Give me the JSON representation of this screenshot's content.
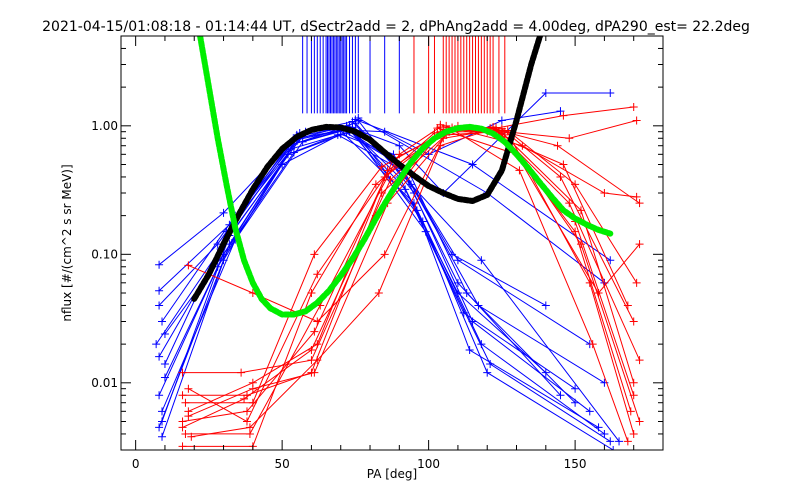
{
  "chart_data": {
    "type": "line",
    "title": "2021-04-15/01:08:18 - 01:14:44 UT, dSectr2add = 2, dPhAng2add = 4.00deg, dPA290_est=  22.2deg",
    "xlabel": "PA [deg]",
    "ylabel": "nflux [#/(cm^2 s sr MeV)]",
    "xlim": [
      -5,
      180
    ],
    "ylim": [
      0.003,
      5
    ],
    "yscale": "log",
    "x_ticks": [
      0,
      50,
      100,
      150
    ],
    "x_tick_labels": [
      "0",
      "50",
      "100",
      "150"
    ],
    "y_ticks": [
      0.01,
      0.1,
      1.0
    ],
    "y_tick_labels": [
      "0.01",
      "0.10",
      "1.00"
    ],
    "colors": {
      "blue": "#0000ff",
      "red": "#ff0000",
      "black": "#000000",
      "green": "#00ee00"
    },
    "series": [
      {
        "color": "blue",
        "style": "line+plus",
        "lines": [
          [
            [
              8,
              0.083
            ],
            [
              30,
              0.21
            ],
            [
              55,
              0.85
            ],
            [
              72,
              1.0
            ],
            [
              90,
              0.4
            ],
            [
              110,
              0.05
            ],
            [
              140,
              0.012
            ]
          ],
          [
            [
              8,
              0.052
            ],
            [
              32,
              0.17
            ],
            [
              55,
              0.78
            ],
            [
              73,
              0.95
            ],
            [
              92,
              0.32
            ],
            [
              112,
              0.035
            ],
            [
              150,
              0.009
            ]
          ],
          [
            [
              8,
              0.04
            ],
            [
              28,
              0.12
            ],
            [
              52,
              0.7
            ],
            [
              70,
              0.92
            ],
            [
              95,
              0.25
            ],
            [
              118,
              0.02
            ],
            [
              160,
              0.004
            ]
          ],
          [
            [
              9,
              0.03
            ],
            [
              34,
              0.2
            ],
            [
              56,
              0.88
            ],
            [
              74,
              0.97
            ],
            [
              98,
              0.18
            ],
            [
              120,
              0.012
            ],
            [
              163,
              0.003
            ]
          ],
          [
            [
              10,
              0.024
            ],
            [
              30,
              0.1
            ],
            [
              54,
              0.62
            ],
            [
              72,
              0.88
            ],
            [
              90,
              0.5
            ],
            [
              108,
              0.1
            ],
            [
              140,
              0.04
            ]
          ],
          [
            [
              8,
              0.016
            ],
            [
              32,
              0.14
            ],
            [
              58,
              0.9
            ],
            [
              76,
              1.1
            ],
            [
              95,
              0.3
            ],
            [
              115,
              0.03
            ],
            [
              155,
              0.006
            ]
          ],
          [
            [
              10,
              0.011
            ],
            [
              28,
              0.08
            ],
            [
              50,
              0.5
            ],
            [
              70,
              0.86
            ],
            [
              88,
              0.6
            ],
            [
              110,
              0.09
            ],
            [
              155,
              0.02
            ]
          ],
          [
            [
              8,
              0.008
            ],
            [
              30,
              0.1
            ],
            [
              53,
              0.66
            ],
            [
              73,
              0.9
            ],
            [
              93,
              0.45
            ],
            [
              113,
              0.05
            ],
            [
              150,
              0.007
            ]
          ],
          [
            [
              9,
              0.006
            ],
            [
              34,
              0.13
            ],
            [
              57,
              0.75
            ],
            [
              74,
              0.96
            ],
            [
              90,
              0.7
            ],
            [
              105,
              0.3
            ],
            [
              140,
              1.8
            ],
            [
              162,
              1.8
            ]
          ],
          [
            [
              8,
              0.0045
            ],
            [
              30,
              0.09
            ],
            [
              55,
              0.8
            ],
            [
              71,
              0.93
            ],
            [
              85,
              0.9
            ],
            [
              100,
              0.6
            ],
            [
              125,
              1.1
            ],
            [
              145,
              1.3
            ]
          ],
          [
            [
              9,
              0.0038
            ],
            [
              32,
              0.12
            ],
            [
              54,
              0.72
            ],
            [
              72,
              0.99
            ],
            [
              96,
              0.22
            ],
            [
              114,
              0.018
            ],
            [
              158,
              0.0045
            ]
          ],
          [
            [
              10,
              0.014
            ],
            [
              31,
              0.15
            ],
            [
              56,
              0.8
            ],
            [
              75,
              1.05
            ],
            [
              94,
              0.35
            ],
            [
              117,
              0.04
            ],
            [
              160,
              0.01
            ]
          ],
          [
            [
              7,
              0.02
            ],
            [
              29,
              0.11
            ],
            [
              52,
              0.6
            ],
            [
              69,
              0.85
            ],
            [
              91,
              0.45
            ],
            [
              110,
              0.06
            ],
            [
              145,
              0.008
            ]
          ],
          [
            [
              9,
              0.005
            ],
            [
              33,
              0.16
            ],
            [
              55,
              0.83
            ],
            [
              73,
              0.98
            ],
            [
              99,
              0.15
            ],
            [
              121,
              0.014
            ],
            [
              162,
              0.0035
            ]
          ],
          [
            [
              76,
              1.15
            ],
            [
              120,
              0.3
            ],
            [
              160,
              0.06
            ]
          ],
          [
            [
              74,
              1.08
            ],
            [
              118,
              0.09
            ],
            [
              165,
              0.0035
            ]
          ],
          [
            [
              75,
              1.12
            ],
            [
              115,
              0.5
            ],
            [
              162,
              0.09
            ]
          ]
        ]
      },
      {
        "color": "red",
        "style": "line+plus",
        "lines": [
          [
            [
              18,
              0.082
            ],
            [
              40,
              0.05
            ],
            [
              62,
              0.03
            ],
            [
              85,
              0.1
            ],
            [
              105,
              0.8
            ],
            [
              125,
              0.95
            ],
            [
              145,
              0.4
            ],
            [
              170,
              0.03
            ]
          ],
          [
            [
              16,
              0.012
            ],
            [
              36,
              0.012
            ],
            [
              60,
              0.015
            ],
            [
              82,
              0.2
            ],
            [
              104,
              0.9
            ],
            [
              122,
              0.98
            ],
            [
              148,
              0.25
            ],
            [
              172,
              0.015
            ]
          ],
          [
            [
              16,
              0.008
            ],
            [
              38,
              0.008
            ],
            [
              60,
              0.012
            ],
            [
              84,
              0.3
            ],
            [
              106,
              0.85
            ],
            [
              124,
              0.9
            ],
            [
              150,
              0.18
            ],
            [
              170,
              0.008
            ]
          ],
          [
            [
              18,
              0.006
            ],
            [
              40,
              0.01
            ],
            [
              62,
              0.02
            ],
            [
              86,
              0.45
            ],
            [
              108,
              0.95
            ],
            [
              126,
              0.85
            ],
            [
              152,
              0.12
            ],
            [
              172,
              0.005
            ]
          ],
          [
            [
              16,
              0.005
            ],
            [
              38,
              0.006
            ],
            [
              61,
              0.025
            ],
            [
              88,
              0.55
            ],
            [
              110,
              1.0
            ],
            [
              128,
              0.8
            ],
            [
              155,
              0.06
            ],
            [
              170,
              0.004
            ]
          ],
          [
            [
              17,
              0.004
            ],
            [
              39,
              0.004
            ],
            [
              63,
              0.04
            ],
            [
              90,
              0.6
            ],
            [
              104,
              0.98
            ],
            [
              120,
              0.9
            ],
            [
              146,
              0.5
            ],
            [
              168,
              0.04
            ]
          ],
          [
            [
              16,
              0.0032
            ],
            [
              40,
              0.0032
            ],
            [
              60,
              0.05
            ],
            [
              82,
              0.35
            ],
            [
              102,
              0.88
            ],
            [
              121,
              0.96
            ],
            [
              144,
              0.7
            ],
            [
              172,
              0.25
            ]
          ],
          [
            [
              18,
              0.009
            ],
            [
              38,
              0.005
            ],
            [
              62,
              0.07
            ],
            [
              85,
              0.4
            ],
            [
              106,
              0.92
            ],
            [
              127,
              0.92
            ],
            [
              150,
              0.35
            ],
            [
              171,
              0.06
            ]
          ],
          [
            [
              17,
              0.007
            ],
            [
              40,
              0.007
            ],
            [
              61,
              0.1
            ],
            [
              84,
              0.48
            ],
            [
              108,
              0.97
            ],
            [
              125,
              0.88
            ],
            [
              152,
              0.22
            ],
            [
              170,
              0.01
            ]
          ],
          [
            [
              19,
              0.0038
            ],
            [
              39,
              0.0045
            ],
            [
              62,
              0.015
            ],
            [
              83,
              0.05
            ],
            [
              104,
              0.7
            ],
            [
              122,
              0.95
            ],
            [
              146,
              1.2
            ],
            [
              170,
              1.4
            ]
          ],
          [
            [
              18,
              0.0055
            ],
            [
              40,
              0.009
            ],
            [
              61,
              0.012
            ],
            [
              86,
              0.25
            ],
            [
              107,
              0.9
            ],
            [
              126,
              0.9
            ],
            [
              148,
              0.8
            ],
            [
              171,
              1.1
            ]
          ],
          [
            [
              16,
              0.0045
            ],
            [
              37,
              0.0075
            ],
            [
              60,
              0.018
            ],
            [
              87,
              0.38
            ],
            [
              105,
              0.94
            ],
            [
              123,
              0.97
            ],
            [
              150,
              0.15
            ],
            [
              169,
              0.006
            ]
          ],
          [
            [
              103,
              0.96
            ],
            [
              130,
              0.6
            ],
            [
              158,
              0.05
            ],
            [
              172,
              0.12
            ]
          ],
          [
            [
              104,
              1.02
            ],
            [
              132,
              0.7
            ],
            [
              160,
              0.3
            ],
            [
              171,
              0.28
            ]
          ],
          [
            [
              106,
              1.0
            ],
            [
              131,
              0.45
            ],
            [
              156,
              0.02
            ],
            [
              168,
              0.0035
            ]
          ]
        ]
      },
      {
        "color": "black",
        "style": "dotted-thick",
        "x": [
          20,
          25,
          30,
          35,
          40,
          45,
          50,
          55,
          60,
          65,
          70,
          75,
          80,
          85,
          90,
          95,
          100,
          105,
          110,
          115,
          120,
          125,
          130,
          135,
          138
        ],
        "y": [
          0.045,
          0.07,
          0.12,
          0.2,
          0.32,
          0.48,
          0.66,
          0.82,
          0.93,
          0.98,
          0.97,
          0.9,
          0.78,
          0.62,
          0.5,
          0.41,
          0.34,
          0.3,
          0.27,
          0.26,
          0.29,
          0.45,
          1.1,
          3.0,
          5.0
        ]
      },
      {
        "color": "green",
        "style": "dotted-thick",
        "x": [
          22,
          25,
          28,
          31,
          34,
          37,
          40,
          43,
          46,
          50,
          54,
          58,
          62,
          66,
          70,
          74,
          78,
          82,
          86,
          90,
          94,
          98,
          102,
          106,
          110,
          114,
          118,
          122,
          126,
          130,
          134,
          138,
          142,
          146,
          150,
          154,
          158,
          162
        ],
        "y": [
          5.0,
          2.0,
          0.8,
          0.35,
          0.16,
          0.09,
          0.06,
          0.045,
          0.038,
          0.034,
          0.034,
          0.036,
          0.042,
          0.052,
          0.068,
          0.092,
          0.13,
          0.19,
          0.27,
          0.38,
          0.52,
          0.67,
          0.8,
          0.9,
          0.96,
          0.98,
          0.95,
          0.87,
          0.75,
          0.6,
          0.47,
          0.36,
          0.28,
          0.22,
          0.19,
          0.17,
          0.155,
          0.145
        ]
      }
    ],
    "vlines_blue_x": [
      57,
      58.5,
      60,
      61,
      62,
      63,
      64,
      65,
      65.5,
      66,
      66.5,
      67,
      67.5,
      68,
      68.5,
      69,
      69.5,
      70,
      70.5,
      71,
      71.5,
      72,
      73,
      74,
      75,
      76,
      80,
      85,
      90
    ],
    "vlines_red_x": [
      95,
      100,
      102,
      105,
      106,
      107,
      108,
      109,
      110,
      111,
      112,
      113,
      114,
      115,
      116,
      117,
      118,
      119,
      120,
      121,
      122,
      124,
      126
    ],
    "vline_ylow": 1.25
  }
}
